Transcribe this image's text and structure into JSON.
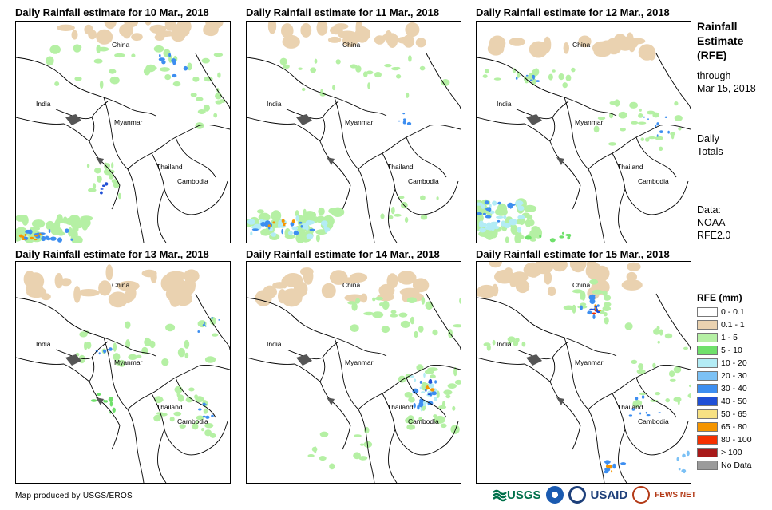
{
  "panels": [
    {
      "title": "Daily Rainfall estimate for 10 Mar., 2018"
    },
    {
      "title": "Daily Rainfall estimate for 11 Mar., 2018"
    },
    {
      "title": "Daily Rainfall estimate for 12 Mar., 2018"
    },
    {
      "title": "Daily Rainfall estimate for 13 Mar., 2018"
    },
    {
      "title": "Daily Rainfall estimate for 14 Mar., 2018"
    },
    {
      "title": "Daily Rainfall estimate for 15 Mar., 2018"
    }
  ],
  "place_labels": {
    "china": "China",
    "india": "India",
    "myanmar": "Myanmar",
    "thailand": "Thailand",
    "cambodia": "Cambodia"
  },
  "sidebar": {
    "title_line1": "Rainfall",
    "title_line2": "Estimate",
    "title_line3": "(RFE)",
    "through_line1": "through",
    "through_line2": "Mar 15, 2018",
    "totals_line1": "Daily",
    "totals_line2": "Totals",
    "data_line1": "Data:",
    "data_line2": "NOAA-",
    "data_line3": "RFE2.0"
  },
  "legend": {
    "title": "RFE (mm)",
    "items": [
      {
        "label": "0 - 0.1",
        "color": "#ffffff"
      },
      {
        "label": "0.1 - 1",
        "color": "#ead2b0"
      },
      {
        "label": "1 - 5",
        "color": "#b5f0a4"
      },
      {
        "label": "5 - 10",
        "color": "#6fe06b"
      },
      {
        "label": "10 - 20",
        "color": "#b3ecf5"
      },
      {
        "label": "20 - 30",
        "color": "#7cc1f5"
      },
      {
        "label": "30 - 40",
        "color": "#3d8ef0"
      },
      {
        "label": "40 - 50",
        "color": "#1f4fd6"
      },
      {
        "label": "50 - 65",
        "color": "#f7e183"
      },
      {
        "label": "65 - 80",
        "color": "#f59500"
      },
      {
        "label": "80 - 100",
        "color": "#f53000"
      },
      {
        "label": "> 100",
        "color": "#a81a1a"
      },
      {
        "label": "No Data",
        "color": "#9b9b9b"
      }
    ]
  },
  "footer": {
    "credit": "Map produced by USGS/EROS"
  },
  "logos": {
    "usgs": "USGS",
    "usaid": "USAID",
    "fewsnet": "FEWS NET"
  }
}
